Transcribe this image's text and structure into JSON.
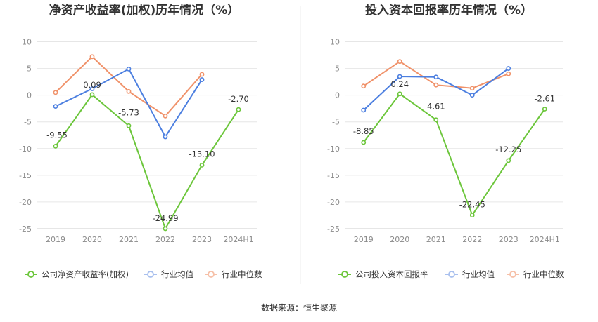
{
  "source_label": "数据来源：恒生聚源",
  "colors": {
    "company": "#6cc63b",
    "avg": "#4c7fe0",
    "median": "#f0926a",
    "grid": "#e6e6e6",
    "axis": "#cccccc"
  },
  "chart_data": [
    {
      "type": "line",
      "title": "净资产收益率(加权)历年情况（%）",
      "categories": [
        "2019",
        "2020",
        "2021",
        "2022",
        "2023",
        "2024H1"
      ],
      "ylim": [
        -25,
        10
      ],
      "yticks": [
        10,
        5,
        0,
        -5,
        -10,
        -15,
        -20,
        -25
      ],
      "grid": true,
      "legend_position": "bottom",
      "series": [
        {
          "name": "公司净资产收益率(加权)",
          "color": "#6cc63b",
          "values": [
            -9.55,
            0.09,
            -5.73,
            -24.99,
            -13.1,
            -2.7
          ],
          "labels": [
            "-9.55",
            "0.09",
            "-5.73",
            "-24.99",
            "-13.10",
            "-2.70"
          ]
        },
        {
          "name": "行业均值",
          "color": "#4c7fe0",
          "values": [
            -2.1,
            1.2,
            4.9,
            -7.8,
            2.9,
            null
          ]
        },
        {
          "name": "行业中位数",
          "color": "#f0926a",
          "values": [
            0.5,
            7.2,
            0.7,
            -3.9,
            3.9,
            null
          ]
        }
      ]
    },
    {
      "type": "line",
      "title": "投入资本回报率历年情况（%）",
      "categories": [
        "2019",
        "2020",
        "2021",
        "2022",
        "2023",
        "2024H1"
      ],
      "ylim": [
        -25,
        10
      ],
      "yticks": [
        10,
        5,
        0,
        -5,
        -10,
        -15,
        -20,
        -25
      ],
      "grid": true,
      "legend_position": "bottom",
      "series": [
        {
          "name": "公司投入资本回报率",
          "color": "#6cc63b",
          "values": [
            -8.85,
            0.24,
            -4.61,
            -22.45,
            -12.25,
            -2.61
          ],
          "labels": [
            "-8.85",
            "0.24",
            "-4.61",
            "-22.45",
            "-12.25",
            "-2.61"
          ]
        },
        {
          "name": "行业均值",
          "color": "#4c7fe0",
          "values": [
            -2.8,
            3.5,
            3.4,
            0.0,
            5.0,
            null
          ]
        },
        {
          "name": "行业中位数",
          "color": "#f0926a",
          "values": [
            1.7,
            6.3,
            1.9,
            1.3,
            4.0,
            null
          ]
        }
      ]
    }
  ]
}
